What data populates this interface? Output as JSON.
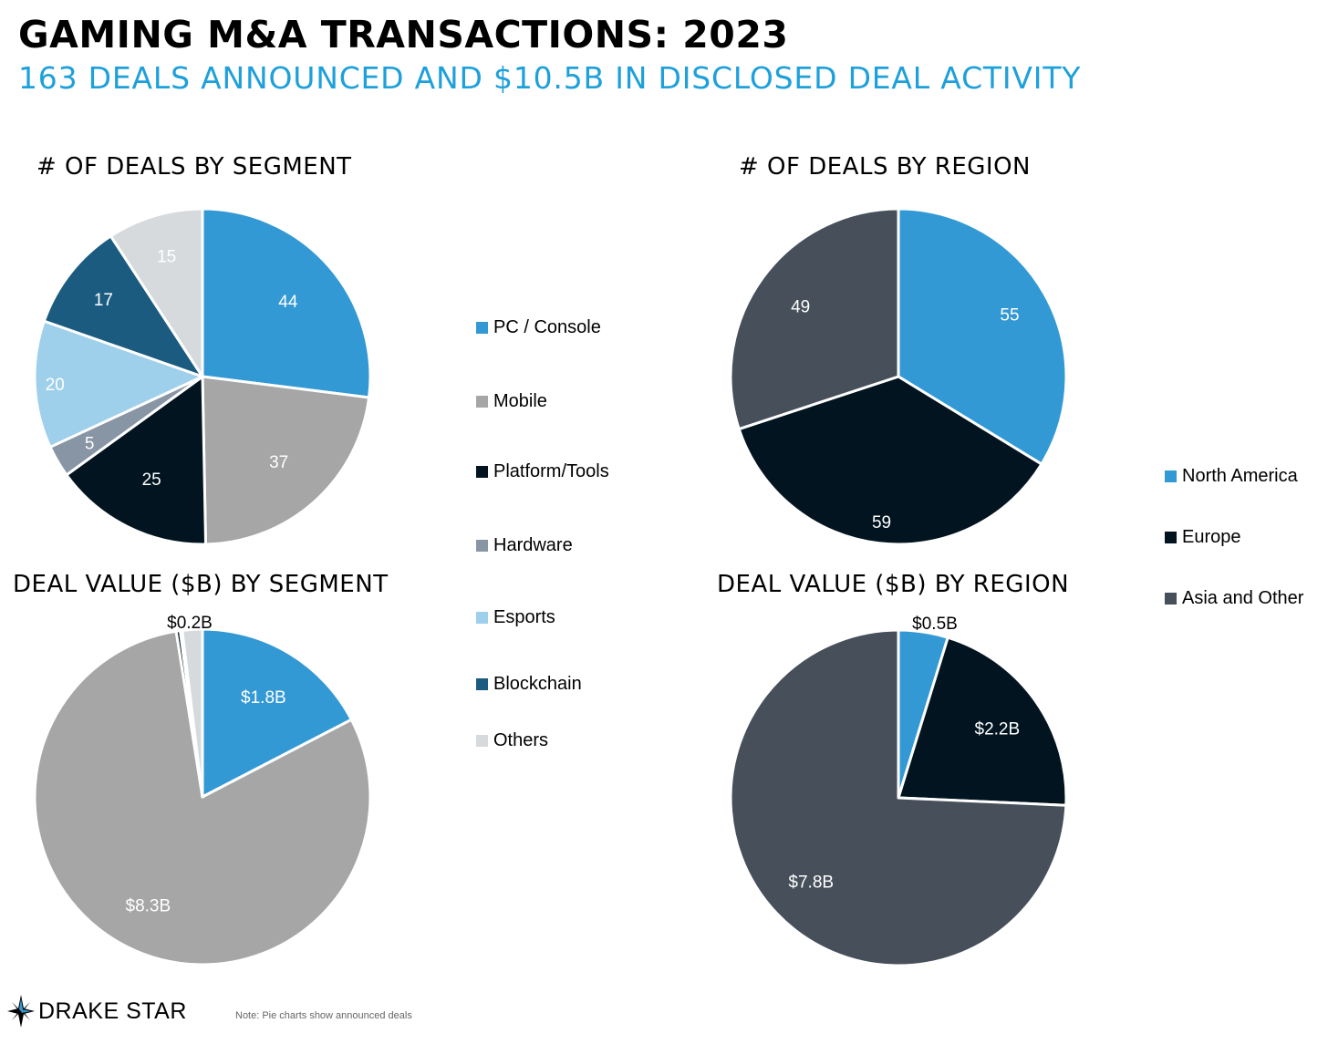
{
  "title": "GAMING M&A TRANSACTIONS: 2023",
  "subtitle": "163 DEALS ANNOUNCED AND $10.5B IN DISCLOSED DEAL ACTIVITY",
  "colors": {
    "accent": "#1ea0da",
    "pc_console": "#3399d4",
    "mobile": "#a6a6a6",
    "platform_tools": "#01141f",
    "hardware": "#8795a4",
    "esports": "#9fd0eb",
    "blockchain": "#1b5b80",
    "others": "#d6dadd",
    "north_america": "#3399d4",
    "europe": "#01141f",
    "asia_other": "#464f5a"
  },
  "segment_legend": [
    {
      "label": "PC / Console",
      "color": "#3399d4"
    },
    {
      "label": "Mobile",
      "color": "#a6a6a6"
    },
    {
      "label": "Platform/Tools",
      "color": "#01141f"
    },
    {
      "label": "Hardware",
      "color": "#8795a4"
    },
    {
      "label": "Esports",
      "color": "#9fd0eb"
    },
    {
      "label": "Blockchain",
      "color": "#1b5b80"
    },
    {
      "label": "Others",
      "color": "#d6dadd"
    }
  ],
  "region_legend": [
    {
      "label": "North America",
      "color": "#3399d4"
    },
    {
      "label": "Europe",
      "color": "#01141f"
    },
    {
      "label": "Asia and Other",
      "color": "#464f5a"
    }
  ],
  "chart_data": [
    {
      "type": "pie",
      "title": "# OF DEALS BY SEGMENT",
      "categories": [
        "PC / Console",
        "Mobile",
        "Platform/Tools",
        "Hardware",
        "Esports",
        "Blockchain",
        "Others"
      ],
      "values": [
        44,
        37,
        25,
        5,
        20,
        17,
        15
      ],
      "labels": [
        "44",
        "37",
        "25",
        "5",
        "20",
        "17",
        "15"
      ],
      "colors": [
        "#3399d4",
        "#a6a6a6",
        "#01141f",
        "#8795a4",
        "#9fd0eb",
        "#1b5b80",
        "#d6dadd"
      ],
      "label_colors": [
        "#fff",
        "#fff",
        "#fff",
        "#fff",
        "#fff",
        "#fff",
        "#fff"
      ],
      "legend": "right"
    },
    {
      "type": "pie",
      "title": "# OF DEALS BY REGION",
      "categories": [
        "North America",
        "Europe",
        "Asia and Other"
      ],
      "values": [
        55,
        59,
        49
      ],
      "labels": [
        "55",
        "59",
        "49"
      ],
      "colors": [
        "#3399d4",
        "#01141f",
        "#464f5a"
      ],
      "label_colors": [
        "#fff",
        "#fff",
        "#fff"
      ],
      "legend": "right"
    },
    {
      "type": "pie",
      "title": "DEAL VALUE ($B) BY SEGMENT",
      "categories": [
        "PC / Console",
        "Mobile",
        "Platform/Tools",
        "Hardware",
        "Esports",
        "Blockchain",
        "Others"
      ],
      "values": [
        1.8,
        8.3,
        0.04,
        0.005,
        0.01,
        0.005,
        0.2
      ],
      "labels": [
        "$1.8B",
        "$8.3B",
        "",
        "",
        "",
        "",
        "$0.2B"
      ],
      "colors": [
        "#3399d4",
        "#a6a6a6",
        "#01141f",
        "#8795a4",
        "#9fd0eb",
        "#1b5b80",
        "#d6dadd"
      ],
      "label_colors": [
        "#fff",
        "#fff",
        "#fff",
        "#fff",
        "#fff",
        "#fff",
        "#000"
      ],
      "legend": "right"
    },
    {
      "type": "pie",
      "title": "DEAL VALUE ($B) BY REGION",
      "categories": [
        "North America",
        "Europe",
        "Asia and Other"
      ],
      "values": [
        0.5,
        2.2,
        7.8
      ],
      "labels": [
        "$0.5B",
        "$2.2B",
        "$7.8B"
      ],
      "colors": [
        "#3399d4",
        "#01141f",
        "#464f5a"
      ],
      "label_colors": [
        "#000",
        "#fff",
        "#fff"
      ],
      "legend": "right"
    }
  ],
  "footer": {
    "logo_text": "DRAKE STAR",
    "note": "Note: Pie charts show announced deals"
  }
}
